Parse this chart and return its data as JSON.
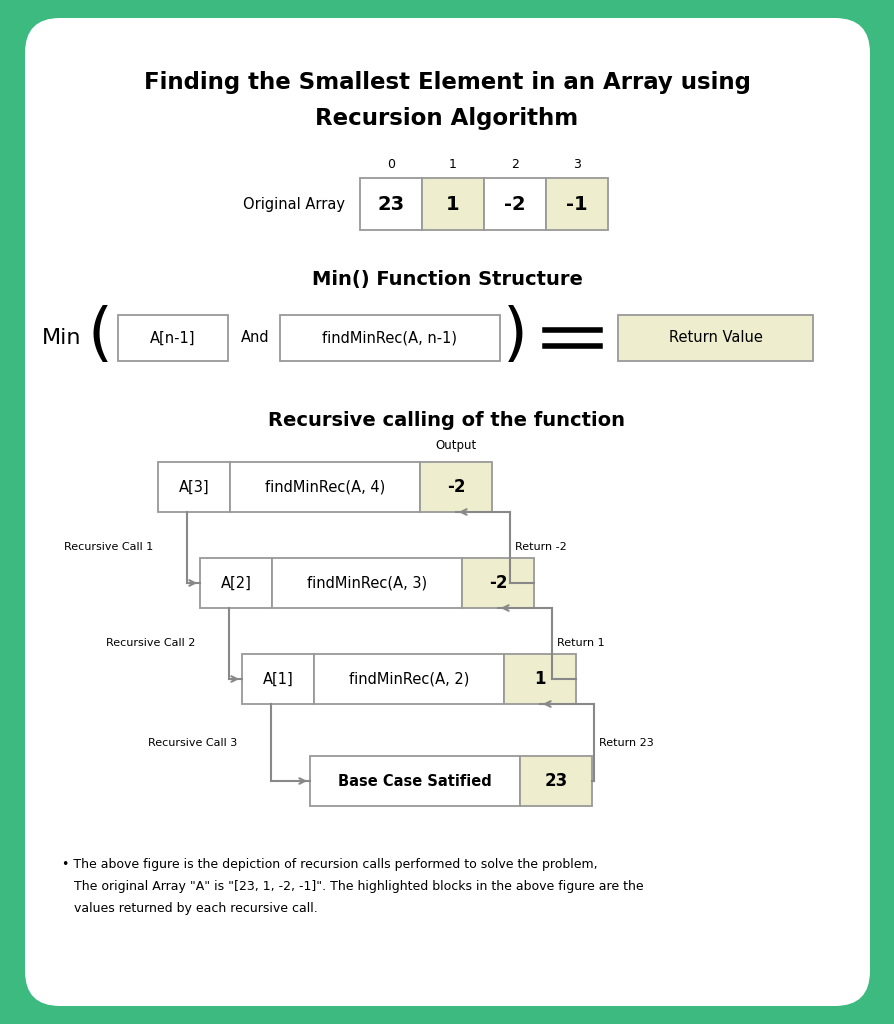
{
  "title_line1": "Finding the Smallest Element in an Array using",
  "title_line2": "Recursion Algorithm",
  "bg_outer": "#3dba7f",
  "bg_inner": "#ffffff",
  "array_values": [
    "23",
    "1",
    "-2",
    "-1"
  ],
  "array_indices": [
    "0",
    "1",
    "2",
    "3"
  ],
  "array_highlighted": [
    false,
    true,
    false,
    true
  ],
  "array_label": "Original Array",
  "section2_title": "Min() Function Structure",
  "section3_title": "Recursive calling of the function",
  "highlight_color": "#eeeece",
  "box_color": "#ffffff",
  "box_edge": "#999999",
  "footer_bullet": "• The above figure is the depiction of recursion calls performed to solve the problem,",
  "footer_line2": "   The original Array \"A\" is \"[23, 1, -2, -1]\". The highlighted blocks in the above figure are the",
  "footer_line3": "   values returned by each recursive call.",
  "arrow_color": "#888888",
  "recursive_labels": [
    "Recursive Call 1",
    "Recursive Call 2",
    "Recursive Call 3"
  ],
  "return_labels": [
    "Return -2",
    "Return 1",
    "Return 23"
  ],
  "output_label": "Output"
}
